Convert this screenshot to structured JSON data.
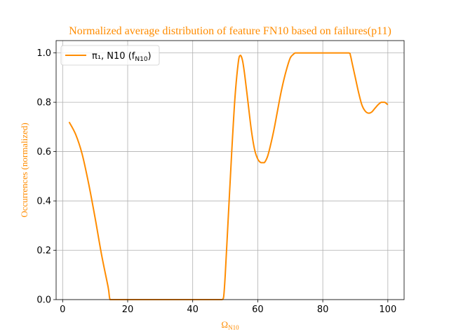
{
  "chart_data": {
    "type": "line",
    "title": "Normalized average distribution of feature FN10 based on failures(p11)",
    "xlabel": "Ω",
    "xlabel_sub": "N10",
    "ylabel": "Occurrences (normalized)",
    "xlim": [
      -2,
      105
    ],
    "ylim": [
      0,
      1.05
    ],
    "xticks": [
      0,
      20,
      40,
      60,
      80,
      100
    ],
    "yticks": [
      0.0,
      0.2,
      0.4,
      0.6,
      0.8,
      1.0
    ],
    "grid": true,
    "legend_position": "top-left",
    "series": [
      {
        "name": "π₁, N10 (f",
        "name_sub": "N10",
        "name_suffix": ")",
        "color": "#ff8c00",
        "x": [
          2,
          4,
          6,
          8,
          10,
          12,
          14,
          14.6,
          16,
          20,
          30,
          40,
          48,
          49,
          49.5,
          50,
          51,
          52,
          53,
          54,
          54.6,
          55.3,
          56,
          57,
          58,
          59,
          60,
          61,
          62,
          63,
          64,
          65,
          66,
          67,
          68,
          69,
          70,
          71,
          71.5,
          72,
          75,
          80,
          85,
          88,
          88.5,
          89,
          90,
          91,
          92,
          93,
          94,
          95,
          96,
          97,
          98,
          99,
          100
        ],
        "y": [
          0.72,
          0.67,
          0.59,
          0.47,
          0.33,
          0.18,
          0.05,
          0.0,
          0.0,
          0.0,
          0.0,
          0.0,
          0.0,
          0.0,
          0.01,
          0.1,
          0.35,
          0.6,
          0.82,
          0.96,
          0.99,
          0.97,
          0.91,
          0.8,
          0.69,
          0.61,
          0.57,
          0.555,
          0.555,
          0.58,
          0.63,
          0.69,
          0.76,
          0.83,
          0.89,
          0.94,
          0.98,
          0.995,
          1.0,
          1.0,
          1.0,
          1.0,
          1.0,
          1.0,
          0.99,
          0.96,
          0.9,
          0.84,
          0.79,
          0.765,
          0.756,
          0.76,
          0.775,
          0.79,
          0.8,
          0.8,
          0.79
        ]
      }
    ]
  }
}
